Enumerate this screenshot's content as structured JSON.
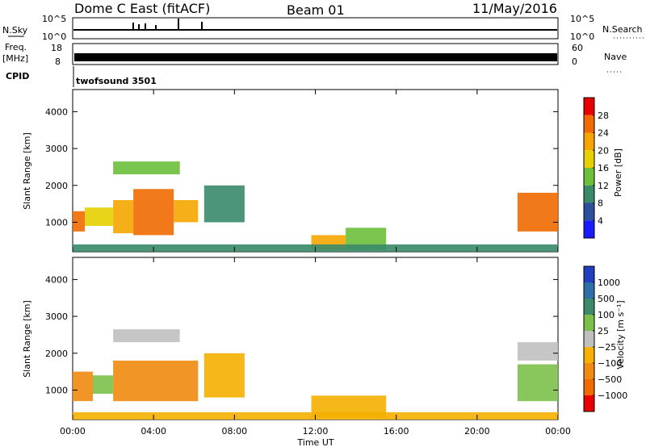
{
  "header": {
    "station": "Dome C East (fitACF)",
    "beam": "Beam 01",
    "date": "11/May/2016"
  },
  "strips": {
    "nsky": {
      "label": "N.Sky",
      "left_ticks": [
        "10^5",
        "10^0"
      ],
      "right_ticks": [
        "10^5",
        "10^0"
      ],
      "right_label": "N.Search"
    },
    "freq": {
      "label_line1": "Freq.",
      "label_line2": "[MHz]",
      "left_ticks": [
        "18",
        "8"
      ],
      "right_ticks": [
        "60",
        "0"
      ],
      "right_label": "Nave"
    },
    "cpid": {
      "label": "CPID",
      "program": "twofsound 3501"
    }
  },
  "axes": {
    "ylabel": "Slant Range [km]",
    "xlabel": "Time UT",
    "x_ticks": [
      "00:00",
      "04:00",
      "08:00",
      "12:00",
      "16:00",
      "20:00",
      "00:00"
    ],
    "y_ticks": [
      "1000",
      "2000",
      "3000",
      "4000"
    ]
  },
  "colorbars": {
    "power": {
      "label": "Power [dB]",
      "ticks": [
        "4",
        "8",
        "12",
        "16",
        "20",
        "24",
        "28"
      ],
      "colors": [
        "#1a1aff",
        "#2e4f9c",
        "#3a8a6a",
        "#6cbf3a",
        "#e6d000",
        "#f5a500",
        "#f06a00",
        "#e80000"
      ]
    },
    "velocity": {
      "label": "Velocity [m s⁻¹]",
      "ticks": [
        "1000",
        "500",
        "100",
        "25",
        "−25",
        "−100",
        "−500",
        "−1000"
      ],
      "colors": [
        "#1f3fbf",
        "#2e6fa8",
        "#3d8a6a",
        "#7cc04a",
        "#c0c0c0",
        "#f5b000",
        "#f08a10",
        "#f06a00",
        "#e80000"
      ]
    }
  },
  "chart_data": [
    {
      "type": "heatmap",
      "title": "",
      "xlabel": "Time UT",
      "ylabel": "Slant Range [km]",
      "xlim": [
        0,
        24
      ],
      "ylim": [
        200,
        4600
      ],
      "colorbar": "Power [dB]",
      "patches": [
        {
          "t0": 0.0,
          "t1": 0.6,
          "r0": 750,
          "r1": 1300,
          "value": 24
        },
        {
          "t0": 0.6,
          "t1": 2.0,
          "r0": 900,
          "r1": 1400,
          "value": 16
        },
        {
          "t0": 2.0,
          "t1": 3.0,
          "r0": 700,
          "r1": 1600,
          "value": 22
        },
        {
          "t0": 3.0,
          "t1": 5.0,
          "r0": 650,
          "r1": 1900,
          "value": 26
        },
        {
          "t0": 5.0,
          "t1": 6.2,
          "r0": 1000,
          "r1": 1600,
          "value": 20
        },
        {
          "t0": 2.0,
          "t1": 5.3,
          "r0": 2300,
          "r1": 2650,
          "value": 14
        },
        {
          "t0": 6.5,
          "t1": 8.5,
          "r0": 1000,
          "r1": 2000,
          "value": 10
        },
        {
          "t0": 11.8,
          "t1": 13.5,
          "r0": 250,
          "r1": 650,
          "value": 22
        },
        {
          "t0": 13.5,
          "t1": 15.5,
          "r0": 250,
          "r1": 850,
          "value": 12
        },
        {
          "t0": 22.0,
          "t1": 24.0,
          "r0": 750,
          "r1": 1800,
          "value": 24
        },
        {
          "t0": 0.0,
          "t1": 24.0,
          "r0": 200,
          "r1": 400,
          "value": 8
        }
      ]
    },
    {
      "type": "heatmap",
      "title": "",
      "xlabel": "Time UT",
      "ylabel": "Slant Range [km]",
      "xlim": [
        0,
        24
      ],
      "ylim": [
        200,
        4600
      ],
      "colorbar": "Velocity [m s-1]",
      "patches": [
        {
          "t0": 0.0,
          "t1": 1.0,
          "r0": 700,
          "r1": 1500,
          "value": -100
        },
        {
          "t0": 1.0,
          "t1": 2.0,
          "r0": 900,
          "r1": 1400,
          "value": 80
        },
        {
          "t0": 2.0,
          "t1": 6.2,
          "r0": 700,
          "r1": 1800,
          "value": -200
        },
        {
          "t0": 2.0,
          "t1": 5.3,
          "r0": 2300,
          "r1": 2650,
          "value": 0
        },
        {
          "t0": 6.5,
          "t1": 8.5,
          "r0": 800,
          "r1": 2000,
          "value": -80
        },
        {
          "t0": 11.8,
          "t1": 15.5,
          "r0": 250,
          "r1": 850,
          "value": -60
        },
        {
          "t0": 22.0,
          "t1": 24.0,
          "r0": 700,
          "r1": 1700,
          "value": 60
        },
        {
          "t0": 22.0,
          "t1": 24.0,
          "r0": 1800,
          "r1": 2300,
          "value": 0
        },
        {
          "t0": 0.0,
          "t1": 24.0,
          "r0": 200,
          "r1": 400,
          "value": -30
        }
      ]
    }
  ]
}
